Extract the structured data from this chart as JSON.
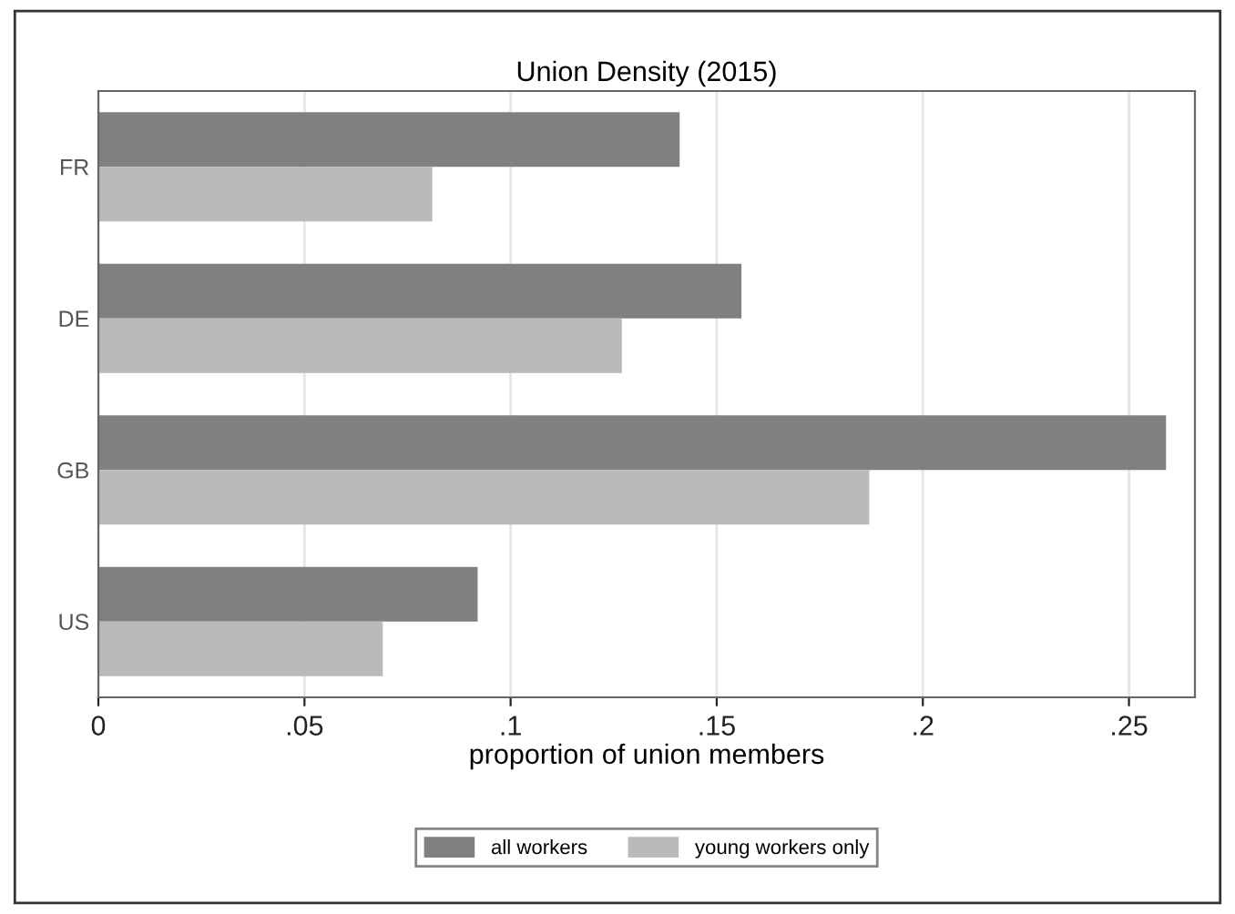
{
  "chart_data": {
    "type": "bar",
    "orientation": "horizontal",
    "title": "Union Density (2015)",
    "xlabel": "proportion of union members",
    "categories": [
      "FR",
      "DE",
      "GB",
      "US"
    ],
    "series": [
      {
        "name": "all workers",
        "color": "#808080",
        "values": [
          0.141,
          0.156,
          0.259,
          0.092
        ]
      },
      {
        "name": "young workers only",
        "color": "#bababa",
        "values": [
          0.081,
          0.127,
          0.187,
          0.069
        ]
      }
    ],
    "xlim": [
      0,
      0.266
    ],
    "xticks": [
      {
        "value": 0,
        "label": "0"
      },
      {
        "value": 0.05,
        "label": ".05"
      },
      {
        "value": 0.1,
        "label": ".1"
      },
      {
        "value": 0.15,
        "label": ".15"
      },
      {
        "value": 0.2,
        "label": ".2"
      },
      {
        "value": 0.25,
        "label": ".25"
      }
    ],
    "grid": "x",
    "legend": "bottom"
  }
}
